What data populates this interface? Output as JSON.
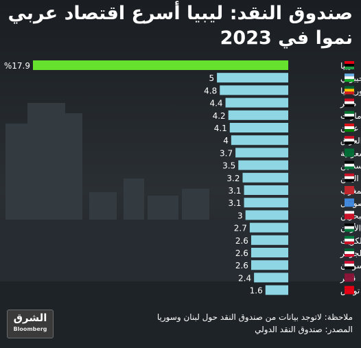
{
  "title": {
    "line1": "صندوق النقد: ليبيا أسرع اقتصاد عربي",
    "line2": "نموا في 2023"
  },
  "chart_data": {
    "type": "bar",
    "orientation": "horizontal",
    "highlight_color": "#66e22e",
    "bar_color": "#8ed6e3",
    "categories": [
      "ليبيا",
      "جيبوتي",
      "موريتانيا",
      "مصر",
      "الإمارات",
      "عمان",
      "العراق",
      "السعودية",
      "فلسطين",
      "اليمن",
      "المغرب",
      "الصومال",
      "البحرين",
      "الأردن",
      "الكويت",
      "الجزائر",
      "السودان",
      "قطر",
      "تونس"
    ],
    "values": [
      17.9,
      5,
      4.8,
      4.4,
      4.2,
      4.1,
      4,
      3.7,
      3.5,
      3.2,
      3.1,
      3.1,
      3,
      2.7,
      2.6,
      2.6,
      2.6,
      2.4,
      1.6
    ],
    "value_labels": [
      "%17.9",
      "5",
      "4.8",
      "4.4",
      "4.2",
      "4.1",
      "4",
      "3.7",
      "3.5",
      "3.2",
      "3.1",
      "3.1",
      "3",
      "2.7",
      "2.6",
      "2.6",
      "2.6",
      "2.4",
      "1.6"
    ]
  },
  "notes": {
    "note": "ملاحظة: لاتوجد بيانات من صندوق النقد حول لبنان وسوريا",
    "source": "المصدر: صندوق النقد الدولي"
  },
  "logo": {
    "arabic": "الشرق",
    "english": "Bloomberg"
  }
}
